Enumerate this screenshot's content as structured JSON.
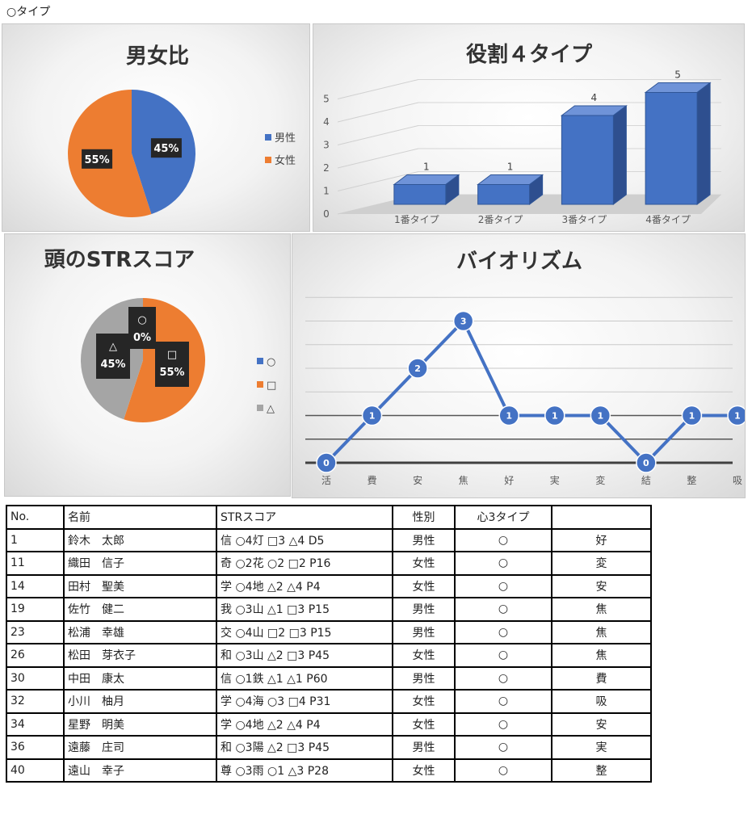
{
  "page_label": "○タイプ",
  "chart_data": [
    {
      "id": "gender",
      "type": "pie",
      "title": "男女比",
      "slices": [
        {
          "name": "男性",
          "value": 45,
          "label": "45%",
          "color": "#4472C4"
        },
        {
          "name": "女性",
          "value": 55,
          "label": "55%",
          "color": "#ED7D31"
        }
      ],
      "legend": "right"
    },
    {
      "id": "roles",
      "type": "bar",
      "title": "役割４タイプ",
      "categories": [
        "1番タイプ",
        "2番タイプ",
        "3番タイプ",
        "4番タイプ"
      ],
      "values": [
        1,
        1,
        4,
        5
      ],
      "ylim": [
        0,
        5
      ],
      "yticks": [
        "0",
        "1",
        "2",
        "3",
        "4",
        "5"
      ],
      "color": "#4472C4",
      "grid": true
    },
    {
      "id": "str",
      "type": "pie",
      "title": "頭のSTRスコア",
      "slices": [
        {
          "name": "○",
          "value": 0,
          "label": "○",
          "pct": "0%",
          "color": "#4472C4"
        },
        {
          "name": "□",
          "value": 55,
          "label": "□",
          "pct": "55%",
          "color": "#ED7D31"
        },
        {
          "name": "△",
          "value": 45,
          "label": "△",
          "pct": "45%",
          "color": "#A5A5A5"
        }
      ],
      "legend": "right"
    },
    {
      "id": "bio",
      "type": "line",
      "title": "バイオリズム",
      "categories": [
        "活",
        "費",
        "安",
        "焦",
        "好",
        "実",
        "変",
        "結",
        "整",
        "吸"
      ],
      "values": [
        0,
        1,
        2,
        3,
        1,
        1,
        1,
        0,
        1,
        1
      ],
      "labels": [
        "0",
        "1",
        "2",
        "3",
        "1",
        "1",
        "1",
        "0",
        "1",
        "1"
      ],
      "ylim": [
        0,
        3
      ],
      "color": "#4472C4",
      "grid": true
    }
  ],
  "table": {
    "headers": [
      "No.",
      "名前",
      "STRスコア",
      "性別",
      "心3タイプ",
      ""
    ],
    "rows": [
      [
        "1",
        "鈴木　太郎",
        "信 ○4灯 □3 △4 D5",
        "男性",
        "○",
        "好"
      ],
      [
        "11",
        "織田　信子",
        "奇 ○2花 ○2 □2 P16",
        "女性",
        "○",
        "変"
      ],
      [
        "14",
        "田村　聖美",
        "学 ○4地 △2 △4 P4",
        "女性",
        "○",
        "安"
      ],
      [
        "19",
        "佐竹　健二",
        "我 ○3山 △1 □3 P15",
        "男性",
        "○",
        "焦"
      ],
      [
        "23",
        "松浦　幸雄",
        "交 ○4山 □2 □3 P15",
        "男性",
        "○",
        "焦"
      ],
      [
        "26",
        "松田　芽衣子",
        "和 ○3山 △2 □3 P45",
        "女性",
        "○",
        "焦"
      ],
      [
        "30",
        "中田　康太",
        "信 ○1鉄 △1 △1 P60",
        "男性",
        "○",
        "費"
      ],
      [
        "32",
        "小川　柚月",
        "学 ○4海 ○3 □4 P31",
        "女性",
        "○",
        "吸"
      ],
      [
        "34",
        "星野　明美",
        "学 ○4地 △2 △4 P4",
        "女性",
        "○",
        "安"
      ],
      [
        "36",
        "遠藤　庄司",
        "和 ○3陽 △2 □3 P45",
        "男性",
        "○",
        "実"
      ],
      [
        "40",
        "遠山　幸子",
        "尊 ○3雨 ○1 △3 P28",
        "女性",
        "○",
        "整"
      ]
    ]
  }
}
